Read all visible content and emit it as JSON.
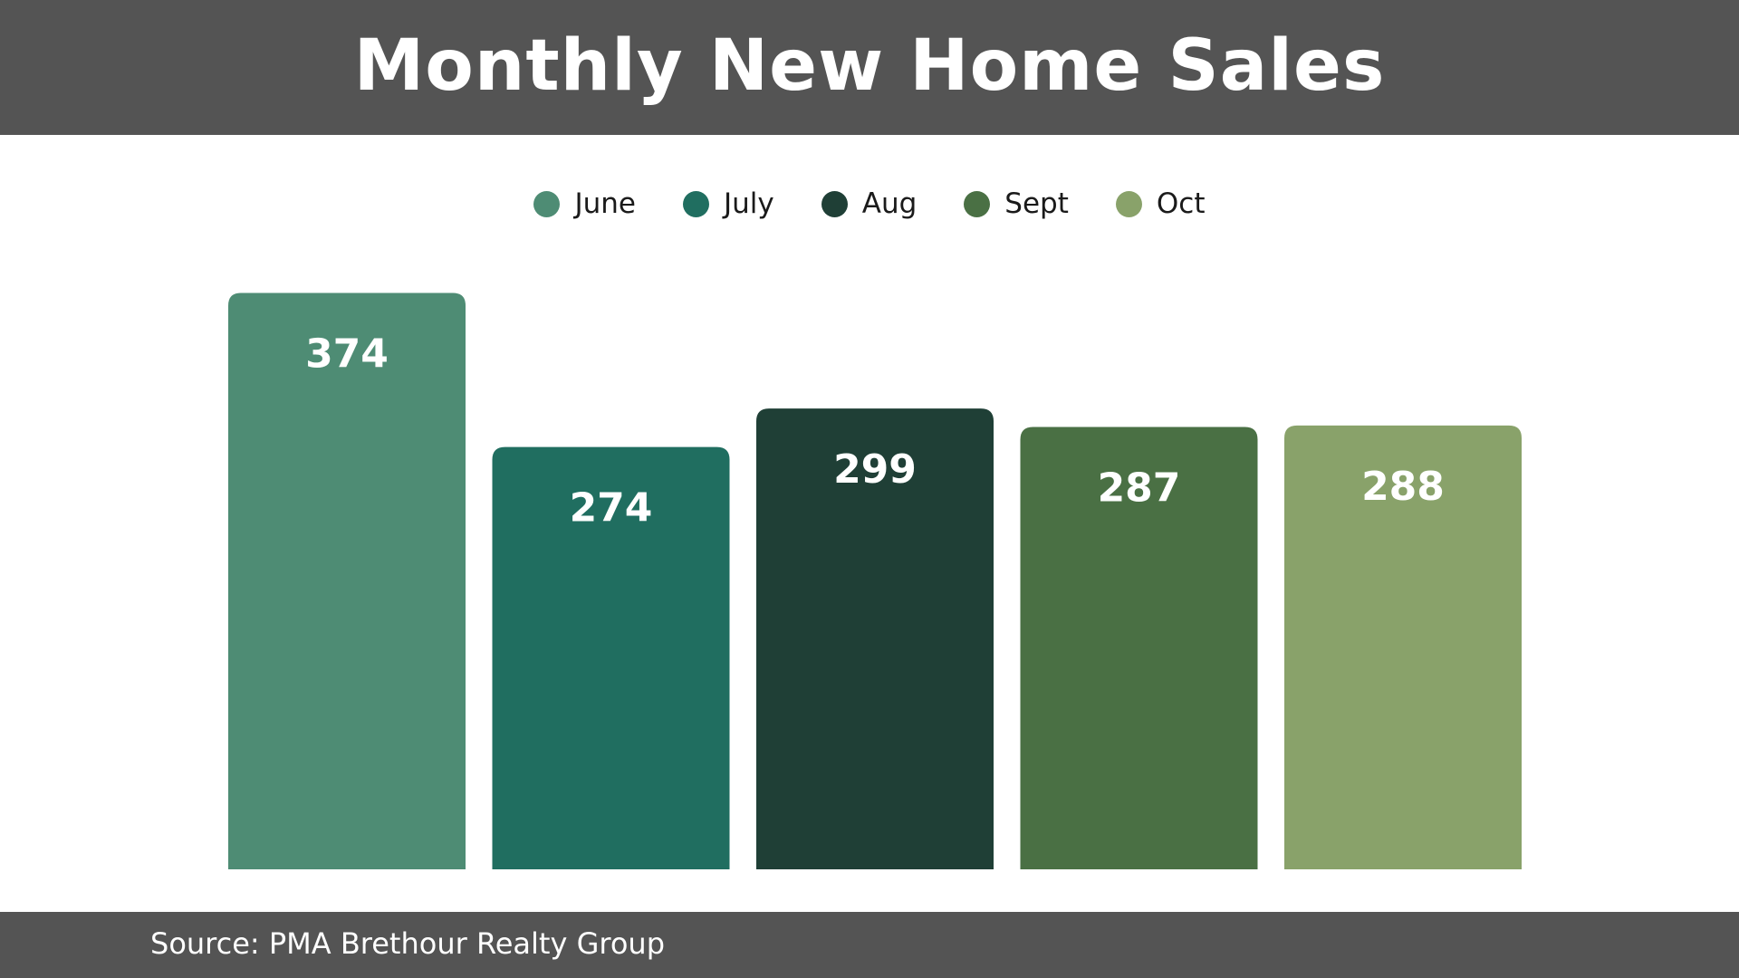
{
  "header": {
    "title": "Monthly New Home Sales"
  },
  "legend": {
    "items": [
      {
        "label": "June",
        "color": "#4E8C74"
      },
      {
        "label": "July",
        "color": "#206E60"
      },
      {
        "label": "Aug",
        "color": "#1F3F36"
      },
      {
        "label": "Sept",
        "color": "#4A7044"
      },
      {
        "label": "Oct",
        "color": "#89A26A"
      }
    ]
  },
  "footer": {
    "source": "Source: PMA Brethour Realty Group"
  },
  "chart_data": {
    "type": "bar",
    "title": "Monthly New Home Sales",
    "categories": [
      "June",
      "July",
      "Aug",
      "Sept",
      "Oct"
    ],
    "values": [
      374,
      274,
      299,
      287,
      288
    ],
    "colors": [
      "#4E8C74",
      "#206E60",
      "#1F3F36",
      "#4A7044",
      "#89A26A"
    ],
    "xlabel": "",
    "ylabel": "",
    "legend_position": "top-center",
    "grid": false,
    "data_labels": true
  }
}
